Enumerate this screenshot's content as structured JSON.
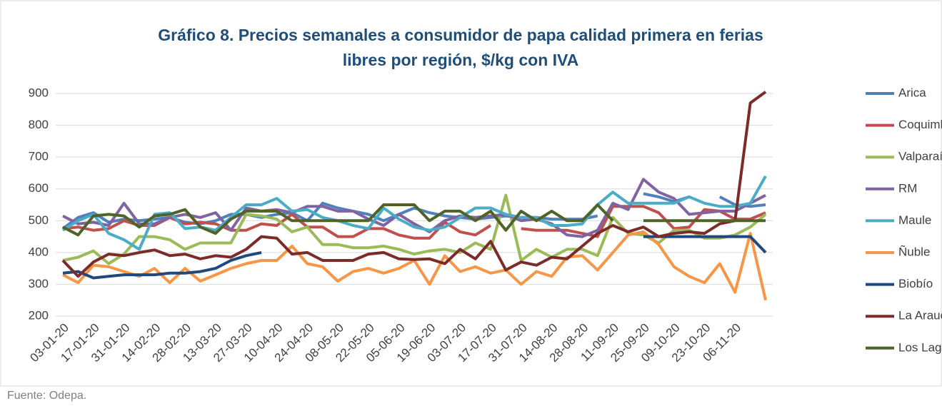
{
  "chart_data": {
    "type": "line",
    "title": "Gráfico 8. Precios semanales a consumidor de papa calidad primera en ferias libres por región, $/kg con IVA",
    "source": "Fuente: Odepa.",
    "categories": [
      "03-01-20",
      null,
      "17-01-20",
      null,
      "31-01-20",
      null,
      "14-02-20",
      null,
      "28-02-20",
      null,
      "13-03-20",
      null,
      "27-03-20",
      null,
      "10-04-20",
      null,
      "24-04-20",
      null,
      "08-05-20",
      null,
      "22-05-20",
      null,
      "05-06-20",
      null,
      "19-06-20",
      null,
      "03-07-20",
      null,
      "17-07-20",
      null,
      "31-07-20",
      null,
      "14-08-20",
      null,
      "28-08-20",
      null,
      "11-09-20",
      null,
      "25-09-20",
      null,
      "09-10-20",
      null,
      "23-10-20",
      null,
      "06-11-20",
      null,
      null
    ],
    "ylim": [
      200,
      900
    ],
    "yticks": [
      200,
      300,
      400,
      500,
      600,
      700,
      800,
      900
    ],
    "grid": true,
    "legend": "right",
    "series": [
      {
        "name": "Arica",
        "color": "#4f81bd",
        "values": [
          475,
          510,
          525,
          495,
          505,
          500,
          505,
          510,
          495,
          490,
          500,
          520,
          520,
          510,
          520,
          525,
          500,
          555,
          540,
          530,
          520,
          500,
          520,
          540,
          525,
          515,
          510,
          505,
          510,
          515,
          510,
          510,
          505,
          505,
          505,
          515,
          null,
          null,
          585,
          575,
          560,
          575,
          null,
          575,
          550,
          545,
          550
        ]
      },
      {
        "name": "Coquimbo",
        "color": "#c0504d",
        "values": [
          475,
          480,
          470,
          475,
          500,
          485,
          485,
          510,
          490,
          495,
          490,
          470,
          470,
          490,
          485,
          520,
          480,
          480,
          450,
          450,
          475,
          475,
          455,
          445,
          445,
          495,
          465,
          455,
          485,
          null,
          475,
          470,
          470,
          470,
          460,
          450,
          545,
          545,
          545,
          525,
          475,
          480,
          535,
          530,
          505,
          505,
          525
        ]
      },
      {
        "name": "Valparaíso",
        "color": "#9bbb59",
        "values": [
          375,
          385,
          405,
          365,
          395,
          450,
          450,
          440,
          410,
          430,
          430,
          430,
          520,
          515,
          505,
          465,
          480,
          425,
          425,
          415,
          415,
          420,
          410,
          395,
          405,
          410,
          400,
          430,
          410,
          580,
          375,
          410,
          385,
          410,
          410,
          390,
          510,
          460,
          455,
          430,
          470,
          470,
          445,
          445,
          455,
          480,
          520
        ]
      },
      {
        "name": "RM",
        "color": "#8064a2",
        "values": [
          515,
          490,
          495,
          485,
          555,
          490,
          490,
          510,
          520,
          510,
          525,
          470,
          540,
          530,
          535,
          525,
          545,
          545,
          530,
          530,
          505,
          485,
          520,
          490,
          465,
          500,
          515,
          510,
          515,
          520,
          500,
          505,
          490,
          455,
          450,
          470,
          555,
          535,
          630,
          590,
          570,
          520,
          525,
          530,
          530,
          555,
          580
        ]
      },
      {
        "name": "Maule",
        "color": "#4bacc6",
        "values": [
          470,
          500,
          520,
          460,
          440,
          410,
          520,
          525,
          475,
          480,
          470,
          510,
          550,
          550,
          570,
          530,
          535,
          510,
          500,
          485,
          475,
          540,
          505,
          480,
          470,
          480,
          510,
          540,
          540,
          520,
          510,
          510,
          485,
          485,
          490,
          550,
          590,
          555,
          555,
          555,
          555,
          575,
          555,
          545,
          545,
          555,
          640
        ]
      },
      {
        "name": "Ñuble",
        "color": "#f79646",
        "values": [
          330,
          305,
          360,
          355,
          340,
          325,
          350,
          305,
          350,
          310,
          330,
          350,
          365,
          375,
          375,
          420,
          365,
          355,
          310,
          340,
          350,
          335,
          350,
          375,
          300,
          390,
          340,
          355,
          335,
          345,
          300,
          340,
          325,
          385,
          390,
          345,
          400,
          455,
          465,
          425,
          355,
          325,
          305,
          365,
          275,
          460,
          250
        ]
      },
      {
        "name": "Biobío",
        "color": "#1f497d",
        "values": [
          335,
          340,
          320,
          325,
          330,
          330,
          330,
          335,
          335,
          340,
          350,
          375,
          390,
          400,
          null,
          null,
          null,
          null,
          null,
          null,
          null,
          null,
          null,
          null,
          null,
          null,
          null,
          null,
          null,
          null,
          null,
          null,
          null,
          null,
          null,
          null,
          null,
          null,
          450,
          450,
          450,
          450,
          450,
          450,
          450,
          450,
          400
        ]
      },
      {
        "name": "La Araucanía",
        "color": "#7b2c2a",
        "values": [
          375,
          325,
          370,
          395,
          390,
          400,
          408,
          390,
          395,
          380,
          390,
          385,
          410,
          450,
          445,
          395,
          400,
          375,
          375,
          375,
          395,
          400,
          380,
          378,
          380,
          365,
          410,
          380,
          435,
          345,
          370,
          360,
          385,
          380,
          420,
          460,
          485,
          465,
          480,
          450,
          460,
          465,
          460,
          490,
          500,
          870,
          905
        ]
      },
      {
        "name": "Los Lagos",
        "color": "#4f6228",
        "values": [
          480,
          455,
          515,
          520,
          515,
          480,
          515,
          520,
          535,
          480,
          460,
          505,
          530,
          530,
          530,
          500,
          500,
          500,
          500,
          500,
          500,
          550,
          550,
          550,
          500,
          530,
          530,
          500,
          530,
          470,
          530,
          500,
          530,
          500,
          500,
          550,
          500,
          null,
          500,
          500,
          500,
          500,
          500,
          500,
          500,
          500,
          500
        ]
      }
    ]
  }
}
